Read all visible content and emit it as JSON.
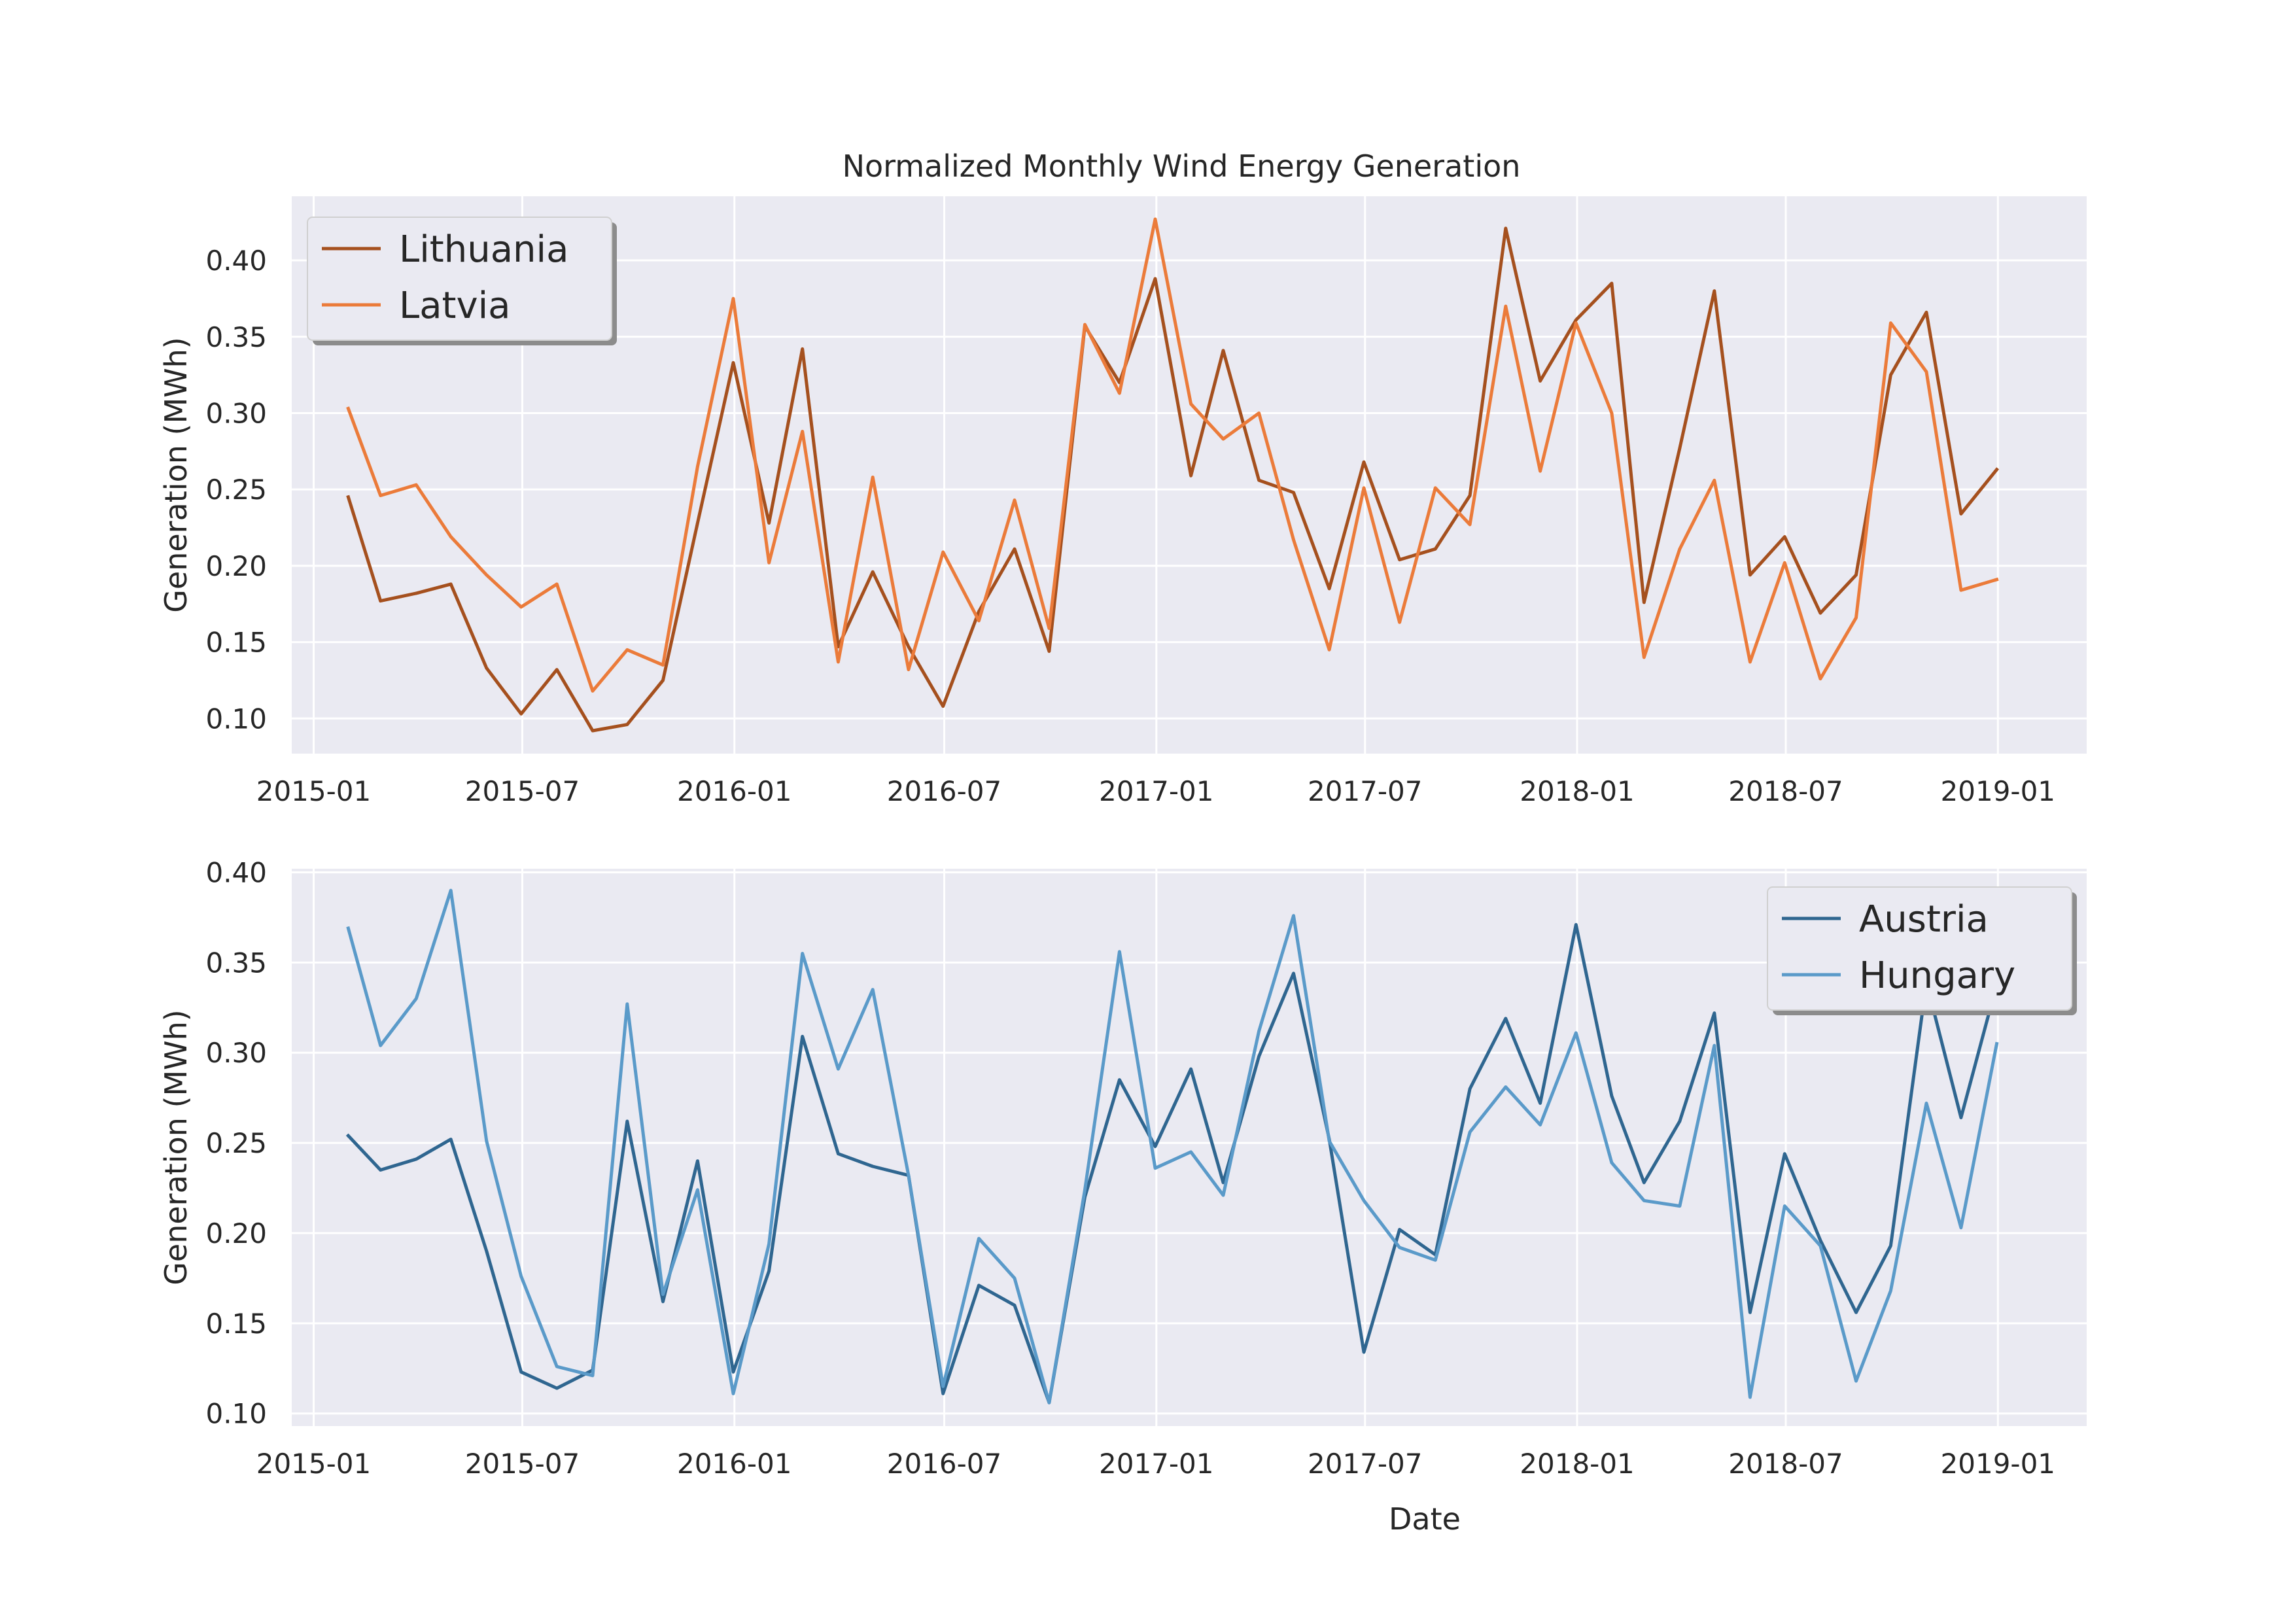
{
  "title": "Normalized Monthly Wind Energy Generation",
  "colors": {
    "Lithuania": "#a5501e",
    "Latvia": "#eb7b3a",
    "Austria": "#2f6690",
    "Hungary": "#5a9ac9",
    "axes_bg": "#eaeaf2",
    "grid": "#ffffff"
  },
  "chart_data": [
    {
      "type": "line",
      "title": "Normalized Monthly Wind Energy Generation",
      "xlabel": "",
      "ylabel": "Generation (MWh)",
      "grid": true,
      "legend_position": "upper-left",
      "x": [
        "2015-01-31",
        "2015-02-28",
        "2015-03-31",
        "2015-04-30",
        "2015-05-31",
        "2015-06-30",
        "2015-07-31",
        "2015-08-31",
        "2015-09-30",
        "2015-10-31",
        "2015-11-30",
        "2015-12-31",
        "2016-01-31",
        "2016-02-29",
        "2016-03-31",
        "2016-04-30",
        "2016-05-31",
        "2016-06-30",
        "2016-07-31",
        "2016-08-31",
        "2016-09-30",
        "2016-10-31",
        "2016-11-30",
        "2016-12-31",
        "2017-01-31",
        "2017-02-28",
        "2017-03-31",
        "2017-04-30",
        "2017-05-31",
        "2017-06-30",
        "2017-07-31",
        "2017-08-31",
        "2017-09-30",
        "2017-10-31",
        "2017-11-30",
        "2017-12-31",
        "2018-01-31",
        "2018-02-28",
        "2018-03-31",
        "2018-04-30",
        "2018-05-31",
        "2018-06-30",
        "2018-07-31",
        "2018-08-31",
        "2018-09-30",
        "2018-10-31",
        "2018-11-30",
        "2018-12-31"
      ],
      "xlim": [
        "2014-12-13",
        "2019-03-19"
      ],
      "ylim": [
        0.077,
        0.442
      ],
      "xticks": [
        "2015-01",
        "2015-07",
        "2016-01",
        "2016-07",
        "2017-01",
        "2017-07",
        "2018-01",
        "2018-07",
        "2019-01"
      ],
      "yticks": [
        "0.10",
        "0.15",
        "0.20",
        "0.25",
        "0.30",
        "0.35",
        "0.40"
      ],
      "series": [
        {
          "name": "Lithuania",
          "values": [
            0.245,
            0.177,
            0.182,
            0.188,
            0.133,
            0.103,
            0.132,
            0.092,
            0.096,
            0.125,
            0.228,
            0.333,
            0.228,
            0.342,
            0.147,
            0.196,
            0.147,
            0.108,
            0.17,
            0.211,
            0.144,
            0.357,
            0.32,
            0.388,
            0.259,
            0.341,
            0.256,
            0.248,
            0.185,
            0.268,
            0.204,
            0.211,
            0.246,
            0.421,
            0.321,
            0.361,
            0.385,
            0.176,
            0.277,
            0.38,
            0.194,
            0.219,
            0.169,
            0.194,
            0.325,
            0.366,
            0.234,
            0.263
          ]
        },
        {
          "name": "Latvia",
          "values": [
            0.303,
            0.246,
            0.253,
            0.219,
            0.194,
            0.173,
            0.188,
            0.118,
            0.145,
            0.135,
            0.265,
            0.375,
            0.202,
            0.288,
            0.137,
            0.258,
            0.132,
            0.209,
            0.164,
            0.243,
            0.159,
            0.358,
            0.313,
            0.427,
            0.306,
            0.283,
            0.3,
            0.217,
            0.145,
            0.251,
            0.163,
            0.251,
            0.227,
            0.37,
            0.262,
            0.359,
            0.3,
            0.14,
            0.211,
            0.256,
            0.137,
            0.202,
            0.126,
            0.166,
            0.359,
            0.327,
            0.184,
            0.191
          ]
        }
      ]
    },
    {
      "type": "line",
      "title": "",
      "xlabel": "Date",
      "ylabel": "Generation (MWh)",
      "grid": true,
      "legend_position": "upper-right",
      "x": [
        "2015-01-31",
        "2015-02-28",
        "2015-03-31",
        "2015-04-30",
        "2015-05-31",
        "2015-06-30",
        "2015-07-31",
        "2015-08-31",
        "2015-09-30",
        "2015-10-31",
        "2015-11-30",
        "2015-12-31",
        "2016-01-31",
        "2016-02-29",
        "2016-03-31",
        "2016-04-30",
        "2016-05-31",
        "2016-06-30",
        "2016-07-31",
        "2016-08-31",
        "2016-09-30",
        "2016-10-31",
        "2016-11-30",
        "2016-12-31",
        "2017-01-31",
        "2017-02-28",
        "2017-03-31",
        "2017-04-30",
        "2017-05-31",
        "2017-06-30",
        "2017-07-31",
        "2017-08-31",
        "2017-09-30",
        "2017-10-31",
        "2017-11-30",
        "2017-12-31",
        "2018-01-31",
        "2018-02-28",
        "2018-03-31",
        "2018-04-30",
        "2018-05-31",
        "2018-06-30",
        "2018-07-31",
        "2018-08-31",
        "2018-09-30",
        "2018-10-31",
        "2018-11-30",
        "2018-12-31"
      ],
      "xlim": [
        "2014-12-13",
        "2019-03-19"
      ],
      "ylim": [
        0.093,
        0.402
      ],
      "xticks": [
        "2015-01",
        "2015-07",
        "2016-01",
        "2016-07",
        "2017-01",
        "2017-07",
        "2018-01",
        "2018-07",
        "2019-01"
      ],
      "yticks": [
        "0.10",
        "0.15",
        "0.20",
        "0.25",
        "0.30",
        "0.35",
        "0.40"
      ],
      "series": [
        {
          "name": "Austria",
          "values": [
            0.254,
            0.235,
            0.241,
            0.252,
            0.19,
            0.123,
            0.114,
            0.124,
            0.262,
            0.162,
            0.24,
            0.123,
            0.179,
            0.309,
            0.244,
            0.237,
            0.232,
            0.111,
            0.171,
            0.16,
            0.106,
            0.22,
            0.285,
            0.248,
            0.291,
            0.228,
            0.298,
            0.344,
            0.252,
            0.134,
            0.202,
            0.188,
            0.28,
            0.319,
            0.272,
            0.371,
            0.276,
            0.228,
            0.262,
            0.322,
            0.156,
            0.244,
            0.196,
            0.156,
            0.193,
            0.339,
            0.264,
            0.338
          ]
        },
        {
          "name": "Hungary",
          "values": [
            0.369,
            0.304,
            0.33,
            0.39,
            0.251,
            0.176,
            0.126,
            0.121,
            0.327,
            0.166,
            0.224,
            0.111,
            0.194,
            0.355,
            0.291,
            0.335,
            0.232,
            0.115,
            0.197,
            0.175,
            0.106,
            0.224,
            0.356,
            0.236,
            0.245,
            0.221,
            0.312,
            0.376,
            0.251,
            0.218,
            0.192,
            0.185,
            0.256,
            0.281,
            0.26,
            0.311,
            0.239,
            0.218,
            0.215,
            0.304,
            0.109,
            0.215,
            0.193,
            0.118,
            0.168,
            0.272,
            0.203,
            0.305
          ]
        }
      ]
    }
  ]
}
